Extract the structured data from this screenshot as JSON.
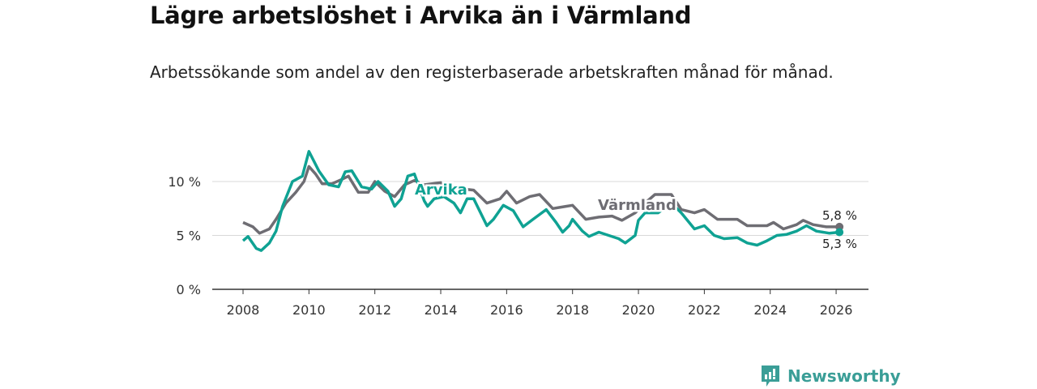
{
  "title": "Lägre arbetslöshet i Arvika än i Värmland",
  "subtitle": "Arbetssökande som andel av den registerbaserade arbetskraften månad för månad.",
  "brand": "Newsworthy",
  "chart_data": {
    "type": "line",
    "title": "Lägre arbetslöshet i Arvika än i Värmland",
    "xlabel": "",
    "ylabel": "",
    "xlim": [
      2007.5,
      2027
    ],
    "ylim": [
      0,
      12.8
    ],
    "x_ticks": [
      "2008",
      "2010",
      "2012",
      "2014",
      "2016",
      "2018",
      "2020",
      "2022",
      "2024",
      "2026"
    ],
    "y_ticks": [
      "0 %",
      "5 %",
      "10 %"
    ],
    "grid": true,
    "series": [
      {
        "name": "Värmland",
        "color": "#6e6d73",
        "end_label": "5,8 %",
        "x": [
          2008,
          2008.3,
          2008.5,
          2008.8,
          2009,
          2009.3,
          2009.6,
          2009.85,
          2010,
          2010.2,
          2010.4,
          2010.7,
          2011,
          2011.2,
          2011.5,
          2011.8,
          2012,
          2012.3,
          2012.6,
          2012.9,
          2013.2,
          2013.5,
          2014,
          2014.3,
          2014.7,
          2015,
          2015.4,
          2015.8,
          2016,
          2016.3,
          2016.7,
          2017,
          2017.4,
          2017.8,
          2018,
          2018.4,
          2018.8,
          2019.2,
          2019.5,
          2019.9,
          2020.2,
          2020.5,
          2021,
          2021.3,
          2021.7,
          2022,
          2022.4,
          2022.8,
          2023,
          2023.3,
          2023.9,
          2024.1,
          2024.4,
          2024.8,
          2025,
          2025.3,
          2025.7,
          2026.1
        ],
        "values": [
          6.2,
          5.8,
          5.2,
          5.6,
          6.5,
          8.0,
          9.0,
          10.0,
          11.4,
          10.7,
          9.8,
          9.8,
          10.2,
          10.5,
          9.0,
          9.0,
          10.0,
          9.1,
          8.6,
          9.7,
          10.1,
          9.7,
          9.9,
          8.8,
          9.3,
          9.2,
          8.0,
          8.4,
          9.1,
          8.0,
          8.6,
          8.8,
          7.5,
          7.7,
          7.8,
          6.5,
          6.7,
          6.8,
          6.4,
          7.1,
          8.0,
          8.8,
          8.8,
          7.4,
          7.1,
          7.4,
          6.5,
          6.5,
          6.5,
          5.9,
          5.9,
          6.2,
          5.6,
          6.0,
          6.4,
          6.0,
          5.8,
          5.8
        ]
      },
      {
        "name": "Arvika",
        "color": "#0fa293",
        "end_label": "5,3 %",
        "x": [
          2008,
          2008.15,
          2008.4,
          2008.55,
          2008.8,
          2009,
          2009.2,
          2009.5,
          2009.8,
          2010,
          2010.3,
          2010.6,
          2010.9,
          2011.1,
          2011.3,
          2011.6,
          2011.9,
          2012.1,
          2012.4,
          2012.6,
          2012.8,
          2013,
          2013.2,
          2013.5,
          2013.6,
          2013.8,
          2014.1,
          2014.4,
          2014.6,
          2014.8,
          2015,
          2015.4,
          2015.6,
          2015.9,
          2016.2,
          2016.5,
          2016.8,
          2017.2,
          2017.5,
          2017.7,
          2017.9,
          2018,
          2018.3,
          2018.5,
          2018.8,
          2019.1,
          2019.4,
          2019.6,
          2019.9,
          2020,
          2020.2,
          2020.6,
          2021,
          2021.3,
          2021.7,
          2022,
          2022.3,
          2022.6,
          2023,
          2023.3,
          2023.6,
          2023.9,
          2024.2,
          2024.5,
          2024.8,
          2025.1,
          2025.4,
          2025.8,
          2026.1
        ],
        "values": [
          4.5,
          4.9,
          3.8,
          3.6,
          4.3,
          5.4,
          7.7,
          10.0,
          10.5,
          12.8,
          11.0,
          9.7,
          9.5,
          10.9,
          11.0,
          9.5,
          9.3,
          10.0,
          9.1,
          7.7,
          8.4,
          10.5,
          10.7,
          8.2,
          7.7,
          8.4,
          8.6,
          8.0,
          7.1,
          8.4,
          8.4,
          5.9,
          6.5,
          7.8,
          7.3,
          5.8,
          6.5,
          7.4,
          6.2,
          5.3,
          5.9,
          6.5,
          5.4,
          4.9,
          5.3,
          5.0,
          4.7,
          4.3,
          5.0,
          6.4,
          7.1,
          7.1,
          8.0,
          7.1,
          5.6,
          5.9,
          5.0,
          4.7,
          4.8,
          4.3,
          4.1,
          4.5,
          5.0,
          5.1,
          5.4,
          5.9,
          5.4,
          5.2,
          5.3
        ]
      }
    ]
  }
}
